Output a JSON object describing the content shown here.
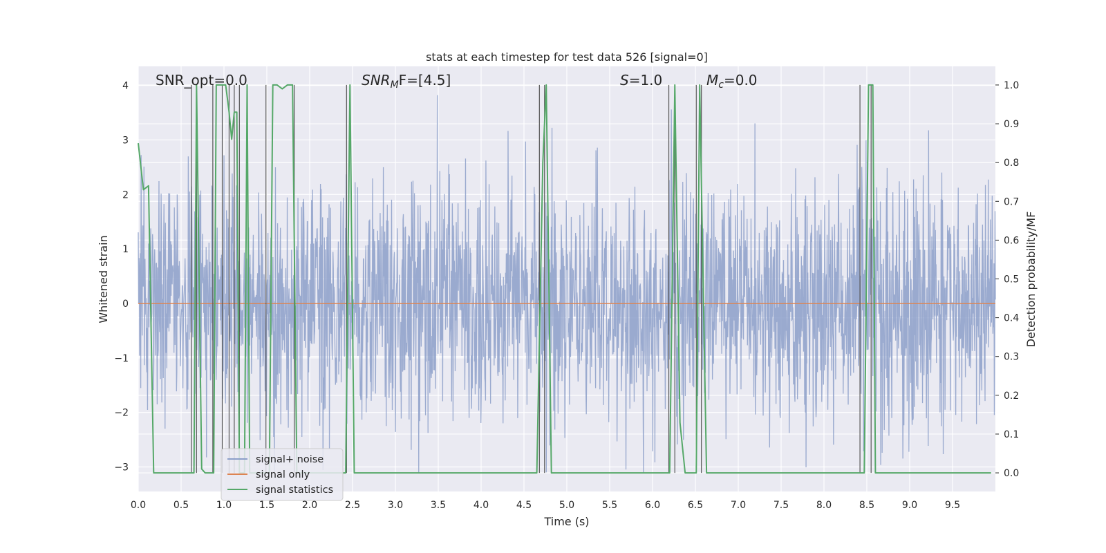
{
  "chart_data": {
    "type": "line",
    "title": "stats at each timestep for test data 526 [signal=0]",
    "xlabel": "Time (s)",
    "ylabel_left": "Whitened strain",
    "ylabel_right": "Detection probability/MF",
    "xlim": [
      0.0,
      10.0
    ],
    "ylim_left": [
      -3.45,
      4.35
    ],
    "ylim_right": [
      -0.048,
      1.048
    ],
    "x_ticks": [
      "0.0",
      "0.5",
      "1.0",
      "1.5",
      "2.0",
      "2.5",
      "3.0",
      "3.5",
      "4.0",
      "4.5",
      "5.0",
      "5.5",
      "6.0",
      "6.5",
      "7.0",
      "7.5",
      "8.0",
      "8.5",
      "9.0",
      "9.5"
    ],
    "y_left_ticks": [
      "4",
      "3",
      "2",
      "1",
      "0",
      "−1",
      "−2",
      "−3"
    ],
    "y_right_ticks": [
      "1.0",
      "0.9",
      "0.8",
      "0.7",
      "0.6",
      "0.5",
      "0.4",
      "0.3",
      "0.2",
      "0.1",
      "0.0"
    ],
    "grid": true,
    "legend_position": "lower-left",
    "annotations": {
      "snr_opt": "SNR_opt=0.0",
      "snr_mf_main": "SNR",
      "snr_mf_sub": "M",
      "snr_mf_tail": "F=[4.5]",
      "s_main": "S",
      "s_tail": "=1.0",
      "mc_main": "M",
      "mc_sub": "c",
      "mc_tail": "=0.0"
    },
    "series": [
      {
        "name": "signal+ noise",
        "color": "#8c9fc9",
        "note": "noise trace, approx. -3.1 to 4.0"
      },
      {
        "name": "signal only",
        "color": "#dd8452",
        "values_constant": 0.0
      },
      {
        "name": "signal statistics",
        "color": "#55a868",
        "x": [
          0.0,
          0.06,
          0.12,
          0.18,
          0.62,
          0.65,
          0.68,
          0.74,
          0.78,
          0.84,
          0.88,
          0.91,
          0.95,
          0.98,
          1.02,
          1.06,
          1.09,
          1.12,
          1.15,
          1.18,
          1.21,
          1.24,
          1.27,
          1.3,
          1.53,
          1.57,
          1.62,
          1.68,
          1.74,
          1.8,
          1.85,
          2.42,
          2.47,
          2.52,
          4.65,
          4.72,
          4.76,
          4.82,
          6.2,
          6.26,
          6.32,
          6.38,
          6.51,
          6.55,
          6.63,
          8.43,
          8.47,
          8.52,
          8.57,
          8.6,
          9.95
        ],
        "y": [
          0.85,
          0.73,
          0.74,
          0.0,
          0.0,
          0.0,
          1.0,
          0.01,
          0.0,
          0.0,
          0.0,
          1.0,
          1.0,
          1.0,
          1.0,
          0.93,
          0.86,
          0.93,
          0.93,
          0.0,
          0.0,
          0.0,
          1.0,
          0.0,
          0.0,
          1.0,
          1.0,
          0.99,
          1.0,
          1.0,
          0.0,
          0.0,
          1.0,
          0.0,
          0.0,
          0.8,
          1.0,
          0.0,
          0.0,
          1.0,
          0.13,
          0.0,
          0.0,
          1.0,
          0.0,
          0.0,
          0.0,
          1.0,
          1.0,
          0.0,
          0.0
        ]
      }
    ],
    "vertical_markers_x": [
      0.62,
      0.68,
      0.87,
      0.98,
      1.06,
      1.12,
      1.18,
      1.49,
      1.82,
      2.43,
      4.68,
      4.74,
      6.19,
      6.26,
      6.51,
      6.57,
      8.42,
      8.55
    ]
  }
}
